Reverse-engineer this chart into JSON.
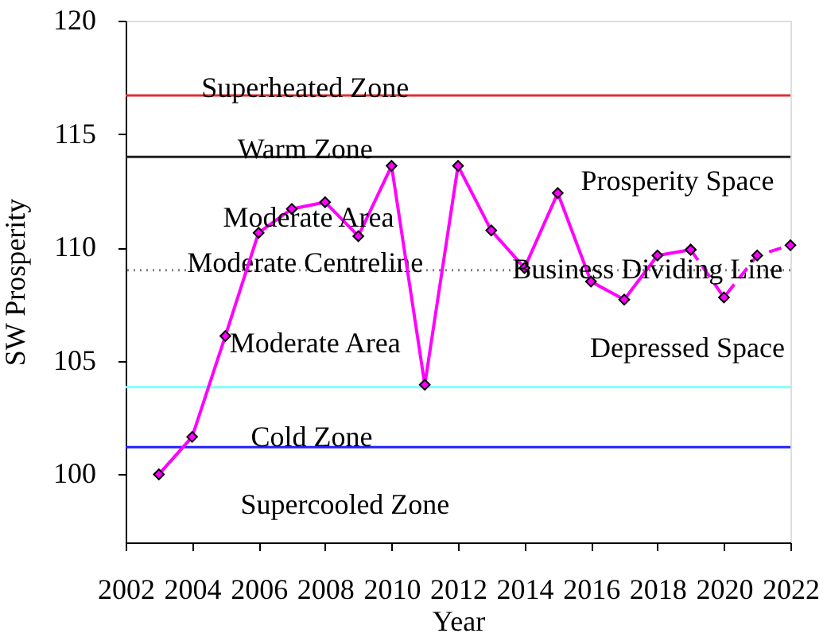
{
  "chart_data": {
    "type": "line",
    "xlabel": "Year",
    "ylabel": "SW Prosperity",
    "xlim": [
      2002,
      2022
    ],
    "ylim": [
      97,
      120
    ],
    "xticks": [
      2002,
      2004,
      2006,
      2008,
      2010,
      2012,
      2014,
      2016,
      2018,
      2020,
      2022
    ],
    "yticks": [
      100,
      105,
      110,
      115,
      120
    ],
    "grid": false,
    "marker": "diamond",
    "series": [
      {
        "color": "#ff00ff",
        "line_style": "solid",
        "x": [
          2003,
          2004,
          2005,
          2006,
          2007,
          2008,
          2009,
          2010,
          2011,
          2012,
          2013,
          2014,
          2015,
          2016,
          2017,
          2018,
          2019
        ],
        "values": [
          100.0,
          101.65,
          106.1,
          110.65,
          111.7,
          112.0,
          110.5,
          113.6,
          103.95,
          113.6,
          110.75,
          109.1,
          112.4,
          108.5,
          107.7,
          109.65,
          109.9
        ]
      },
      {
        "color": "#ff00ff",
        "line_style": "dashed",
        "x": [
          2019,
          2020,
          2021,
          2022
        ],
        "values": [
          109.9,
          107.8,
          109.65,
          110.1
        ]
      }
    ],
    "ref_lines": [
      {
        "axis": "y",
        "value": 116.7,
        "label": "Superheated Zone",
        "color": "#e03030",
        "line_style": "solid"
      },
      {
        "axis": "y",
        "value": 114.0,
        "label": "Warm Zone",
        "color": "#202020",
        "line_style": "solid"
      },
      {
        "axis": "y",
        "value": 109.0,
        "label": "Moderate Centreline",
        "color": "#808080",
        "line_style": "dotted"
      },
      {
        "axis": "y",
        "value": 103.85,
        "color": "#80ffff",
        "line_style": "solid"
      },
      {
        "axis": "y",
        "value": 101.2,
        "color": "#2020ff",
        "line_style": "solid"
      }
    ],
    "annotations": [
      "Moderate Area",
      "Moderate Area",
      "Prosperity Space",
      {
        "text": "Business Dividing Line",
        "x": 2017.7,
        "y": 109.0
      },
      "Depressed Space",
      "Cold Zone",
      "Supercooled Zone"
    ]
  }
}
